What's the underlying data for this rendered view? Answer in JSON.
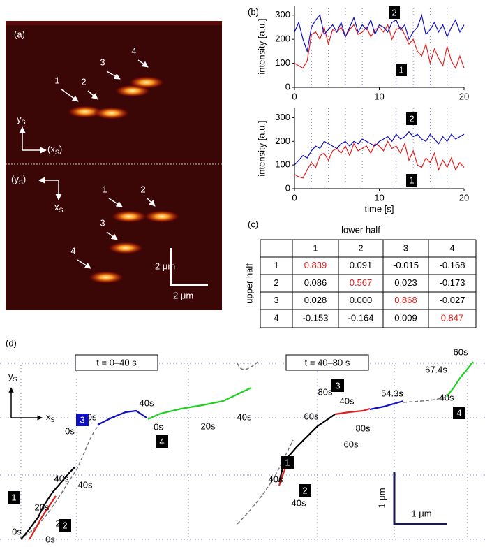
{
  "panel_a": {
    "label": "(a)",
    "upper_spots": [
      "1",
      "2",
      "3",
      "4"
    ],
    "lower_spots": [
      "1",
      "2",
      "3",
      "4"
    ],
    "upper_axes": {
      "y": {
        "main": "y",
        "sub": "S"
      },
      "x": {
        "open": "(",
        "main": "x",
        "sub": "S",
        "close": ")"
      }
    },
    "lower_axes": {
      "y": {
        "open": "(",
        "main": "y",
        "sub": "S",
        "close": ")"
      },
      "x": {
        "main": "x",
        "sub": "S"
      }
    },
    "scale_vertical": "2 μm",
    "scale_horizontal": "2 μm"
  },
  "panel_b": {
    "label": "(b)",
    "charts": [
      {
        "type": "line",
        "ylabel": "intensity [a.u.]",
        "xlim": [
          0,
          20
        ],
        "ylim": [
          0,
          340
        ],
        "xticks": [
          0,
          10,
          20
        ],
        "yticks": [
          0,
          100,
          200,
          300
        ],
        "xgrid": [
          2,
          4,
          6,
          8,
          12,
          14,
          16,
          18
        ],
        "x": [
          0,
          0.5,
          1,
          1.5,
          2,
          2.5,
          3,
          3.5,
          4,
          4.5,
          5,
          5.5,
          6,
          6.5,
          7,
          7.5,
          8,
          8.5,
          9,
          9.5,
          10,
          10.5,
          11,
          11.5,
          12,
          12.5,
          13,
          13.5,
          14,
          14.5,
          15,
          15.5,
          16,
          16.5,
          17,
          17.5,
          18,
          18.5,
          19,
          19.5,
          20
        ],
        "series": [
          {
            "name": "1",
            "color": "#e02020",
            "values": [
              100,
              90,
              80,
              110,
              220,
              230,
              200,
              250,
              180,
              240,
              230,
              250,
              210,
              240,
              260,
              220,
              230,
              250,
              210,
              240,
              250,
              230,
              260,
              200,
              240,
              250,
              220,
              180,
              200,
              150,
              130,
              180,
              100,
              160,
              120,
              90,
              170,
              110,
              80,
              130,
              80
            ]
          },
          {
            "name": "2",
            "color": "#1010c0",
            "values": [
              230,
              270,
              200,
              150,
              250,
              280,
              300,
              220,
              240,
              260,
              230,
              270,
              210,
              250,
              290,
              230,
              260,
              240,
              280,
              220,
              260,
              250,
              230,
              270,
              280,
              240,
              260,
              200,
              230,
              250,
              300,
              220,
              240,
              270,
              230,
              260,
              210,
              250,
              280,
              230,
              260
            ]
          }
        ]
      },
      {
        "type": "line",
        "ylabel": "intensity [a.u.]",
        "xlabel": "time [s]",
        "xlim": [
          0,
          20
        ],
        "ylim": [
          0,
          340
        ],
        "xticks": [
          0,
          10,
          20
        ],
        "yticks": [
          0,
          100,
          200,
          300
        ],
        "xgrid": [
          2,
          4,
          6,
          8,
          12,
          14,
          16,
          18
        ],
        "x": [
          0,
          0.5,
          1,
          1.5,
          2,
          2.5,
          3,
          3.5,
          4,
          4.5,
          5,
          5.5,
          6,
          6.5,
          7,
          7.5,
          8,
          8.5,
          9,
          9.5,
          10,
          10.5,
          11,
          11.5,
          12,
          12.5,
          13,
          13.5,
          14,
          14.5,
          15,
          15.5,
          16,
          16.5,
          17,
          17.5,
          18,
          18.5,
          19,
          19.5,
          20
        ],
        "series": [
          {
            "name": "1",
            "color": "#e02020",
            "values": [
              60,
              50,
              45,
              80,
              110,
              90,
              140,
              150,
              120,
              160,
              170,
              150,
              180,
              140,
              190,
              160,
              170,
              180,
              150,
              190,
              180,
              160,
              200,
              170,
              180,
              150,
              190,
              120,
              160,
              100,
              90,
              130,
              110,
              150,
              80,
              120,
              90,
              130,
              80,
              110,
              90
            ]
          },
          {
            "name": "2",
            "color": "#1010c0",
            "values": [
              100,
              120,
              140,
              130,
              160,
              180,
              170,
              200,
              190,
              180,
              170,
              190,
              200,
              180,
              200,
              190,
              210,
              200,
              190,
              180,
              200,
              210,
              220,
              200,
              230,
              210,
              220,
              240,
              220,
              230,
              210,
              200,
              230,
              210,
              190,
              220,
              200,
              230,
              210,
              220,
              230
            ]
          }
        ]
      }
    ]
  },
  "panel_c": {
    "label": "(c)",
    "column_header": "lower half",
    "row_header": "upper half",
    "columns": [
      "1",
      "2",
      "3",
      "4"
    ],
    "rows": [
      [
        "1",
        "0.839",
        "0.091",
        "-0.015",
        "-0.168"
      ],
      [
        "2",
        "0.086",
        "0.567",
        "0.023",
        "-0.173"
      ],
      [
        "3",
        "0.028",
        "0.000",
        "0.868",
        "-0.027"
      ],
      [
        "4",
        "-0.153",
        "-0.164",
        "0.009",
        "0.847"
      ]
    ],
    "highlight_color": "#e02020"
  },
  "panel_d": {
    "label": "(d)",
    "left": {
      "title": "t = 0–40 s",
      "times": [
        "40s",
        "40s",
        "20s",
        "20s",
        "0s",
        "0s",
        "20s",
        "0s",
        "40s",
        "0s",
        "20s",
        "40s"
      ],
      "ids": [
        "1",
        "2",
        "3",
        "4"
      ]
    },
    "right": {
      "title": "t = 40–80 s",
      "times": [
        "80s",
        "40s",
        "54.3s",
        "80s",
        "60s",
        "60s",
        "40s",
        "40s",
        "67.4s",
        "60s",
        "40s"
      ],
      "ids": [
        "1",
        "2",
        "3",
        "4"
      ]
    },
    "axes": {
      "y": {
        "main": "y",
        "sub": "S"
      },
      "x": {
        "main": "x",
        "sub": "S"
      }
    },
    "scale_vertical": "1 μm",
    "scale_horizontal": "1 μm"
  }
}
